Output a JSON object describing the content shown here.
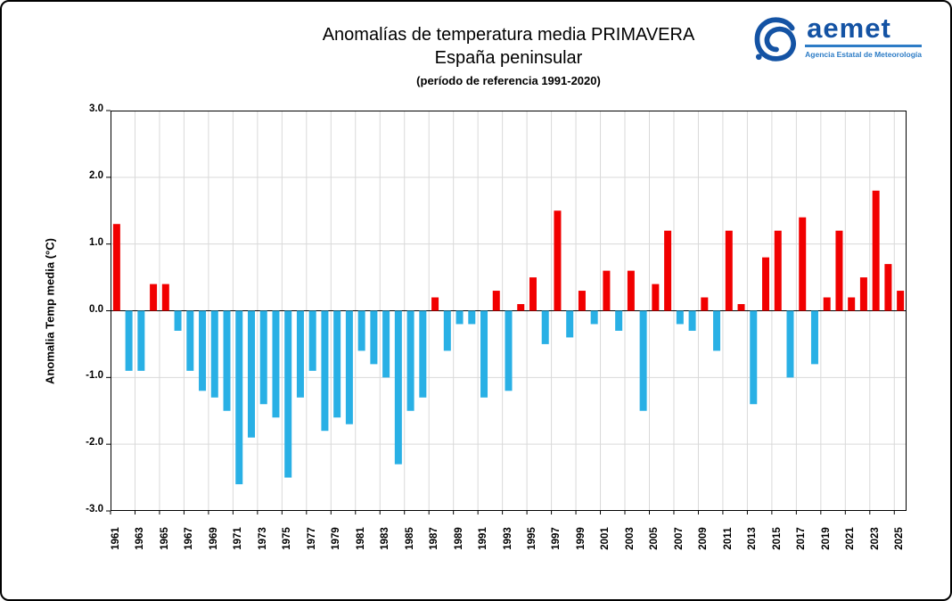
{
  "page": {
    "title": "Anomalías de temperatura media PRIMAVERA",
    "subtitle": "España peninsular",
    "reference": "(período de referencia 1991-2020)"
  },
  "logo": {
    "name": "aemet",
    "tagline": "Agencia Estatal de Meteorología",
    "wordmark_color": "#1453a4",
    "tagline_color": "#2d7cc6"
  },
  "chart_data": {
    "type": "bar",
    "title": "Anomalías de temperatura media PRIMAVERA",
    "subtitle": "España peninsular",
    "reference_period": "(período de referencia 1991-2020)",
    "xlabel": "",
    "ylabel": "Anomalia Temp media (°C)",
    "ylim": [
      -3.0,
      3.0
    ],
    "ytick_step": 1.0,
    "xtick_every": 2,
    "grid": true,
    "grid_color": "#d9d9d9",
    "positive_color": "#f10000",
    "negative_color": "#29b0e5",
    "years": [
      1961,
      1962,
      1963,
      1964,
      1965,
      1966,
      1967,
      1968,
      1969,
      1970,
      1971,
      1972,
      1973,
      1974,
      1975,
      1976,
      1977,
      1978,
      1979,
      1980,
      1981,
      1982,
      1983,
      1984,
      1985,
      1986,
      1987,
      1988,
      1989,
      1990,
      1991,
      1992,
      1993,
      1994,
      1995,
      1996,
      1997,
      1998,
      1999,
      2000,
      2001,
      2002,
      2003,
      2004,
      2005,
      2006,
      2007,
      2008,
      2009,
      2010,
      2011,
      2012,
      2013,
      2014,
      2015,
      2016,
      2017,
      2018,
      2019,
      2020,
      2021,
      2022,
      2023,
      2024,
      2025
    ],
    "values": [
      1.3,
      -0.9,
      -0.9,
      0.4,
      0.4,
      -0.3,
      -0.9,
      -1.2,
      -1.3,
      -1.5,
      -2.6,
      -1.9,
      -1.4,
      -1.6,
      -2.5,
      -1.3,
      -0.9,
      -1.8,
      -1.6,
      -1.7,
      -0.6,
      -0.8,
      -1.0,
      -2.3,
      -1.5,
      -1.3,
      0.2,
      -0.6,
      -0.2,
      -0.2,
      -1.3,
      0.3,
      -1.2,
      0.1,
      0.5,
      -0.5,
      1.5,
      -0.4,
      0.3,
      -0.2,
      0.6,
      -0.3,
      0.6,
      -1.5,
      0.4,
      1.2,
      -0.2,
      -0.3,
      0.2,
      -0.6,
      1.2,
      0.1,
      -1.4,
      0.8,
      1.2,
      -1.0,
      1.4,
      -0.8,
      0.2,
      1.2,
      0.2,
      0.5,
      1.8,
      0.7,
      0.3
    ]
  }
}
